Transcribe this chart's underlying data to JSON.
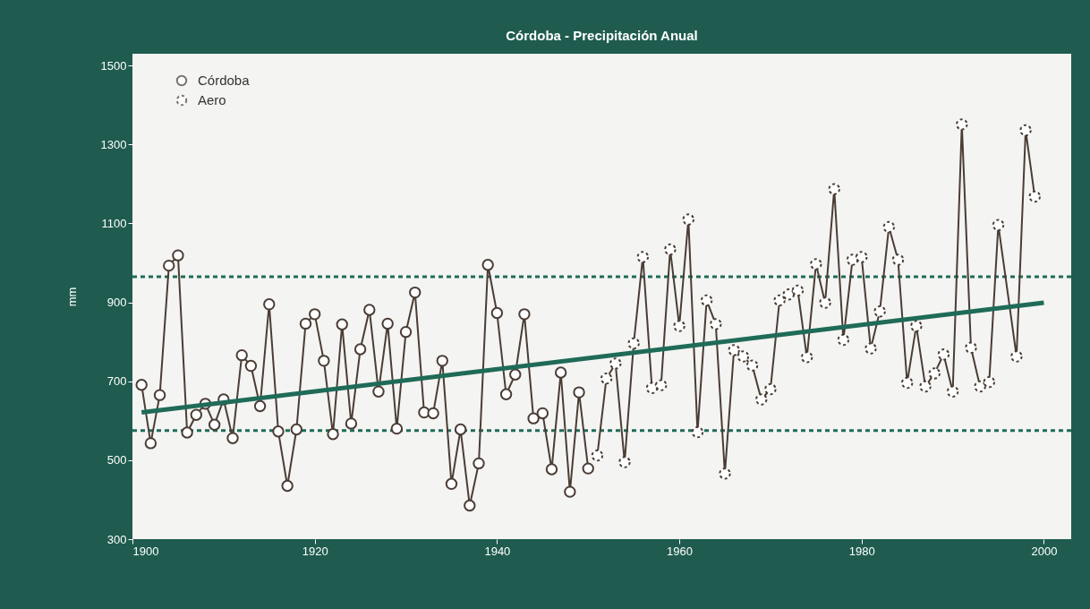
{
  "chart_data": {
    "type": "line",
    "title": "Córdoba - Precipitación Anual",
    "ylabel": "mm",
    "xlim": [
      1900,
      2003
    ],
    "xticks": [
      1900,
      1920,
      1940,
      1960,
      1980,
      2000
    ],
    "ylim": [
      300,
      1530
    ],
    "yticks": [
      300,
      500,
      700,
      900,
      1100,
      1300,
      1500
    ],
    "grid": false,
    "legend": "top left",
    "marker": "circle",
    "series": [
      {
        "name": "Córdoba",
        "color": "#4a3d35",
        "x": [
          1901,
          1902,
          1903,
          1904,
          1905,
          1906,
          1907,
          1908,
          1909,
          1910,
          1911,
          1912,
          1913,
          1914,
          1915,
          1916,
          1917,
          1918,
          1919,
          1920,
          1921,
          1922,
          1923,
          1924,
          1925,
          1926,
          1927,
          1928,
          1929,
          1930,
          1931,
          1932,
          1933,
          1934,
          1935,
          1936,
          1937,
          1938,
          1939,
          1940,
          1941,
          1942,
          1943,
          1944,
          1945,
          1946,
          1947,
          1948,
          1949,
          1950
        ],
        "values": [
          691,
          543,
          665,
          993,
          1019,
          570,
          615,
          643,
          590,
          654,
          556,
          766,
          739,
          637,
          895,
          573,
          435,
          578,
          846,
          870,
          752,
          566,
          844,
          593,
          781,
          881,
          674,
          846,
          580,
          825,
          925,
          621,
          619,
          752,
          440,
          578,
          385,
          492,
          995,
          873,
          667,
          717,
          870,
          606,
          619,
          477,
          722,
          420,
          672,
          479
        ]
      },
      {
        "name": "Aero",
        "color": "#4a3d35",
        "x": [
          1951,
          1952,
          1953,
          1954,
          1955,
          1956,
          1957,
          1958,
          1959,
          1960,
          1961,
          1962,
          1963,
          1964,
          1965,
          1966,
          1967,
          1968,
          1969,
          1970,
          1971,
          1972,
          1973,
          1974,
          1975,
          1976,
          1977,
          1978,
          1979,
          1980,
          1981,
          1982,
          1983,
          1984,
          1985,
          1986,
          1987,
          1988,
          1989,
          1990,
          1991,
          1992,
          1993,
          1994,
          1995,
          1997,
          1998,
          1999
        ],
        "values": [
          512,
          707,
          745,
          495,
          796,
          1015,
          683,
          690,
          1034,
          840,
          1110,
          571,
          905,
          845,
          466,
          779,
          763,
          740,
          654,
          680,
          905,
          920,
          930,
          761,
          997,
          899,
          1187,
          805,
          1008,
          1015,
          783,
          877,
          1091,
          1008,
          696,
          840,
          687,
          720,
          768,
          674,
          1351,
          785,
          687,
          698,
          1096,
          763,
          1336,
          1168
        ]
      },
      {
        "type": "line",
        "color": "#1f6b58",
        "marker": "none",
        "x": [
          1901,
          2000
        ],
        "values": [
          621,
          899
        ]
      }
    ],
    "ref_lines": [
      {
        "axis": "y",
        "value": 965,
        "color": "#1f6b58",
        "line_style": "dashed"
      },
      {
        "axis": "y",
        "value": 575,
        "color": "#1f6b58",
        "line_style": "dashed"
      }
    ]
  }
}
